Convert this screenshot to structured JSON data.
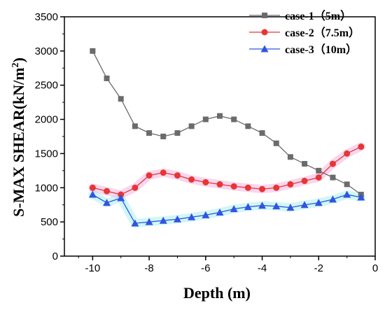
{
  "chart_data": {
    "type": "line",
    "title": "",
    "xlabel": "Depth (m)",
    "ylabel": "S-MAX SHEAR(kN/m",
    "ylabel_superscript": "2",
    "ylabel_close": ")",
    "xlim": [
      -11,
      0
    ],
    "ylim": [
      0,
      3500
    ],
    "xticks": [
      -10,
      -8,
      -6,
      -4,
      -2,
      0
    ],
    "yticks": [
      0,
      500,
      1000,
      1500,
      2000,
      2500,
      3000,
      3500
    ],
    "grid": false,
    "legend_position": "top-right",
    "series": [
      {
        "name": "case-1（5m）",
        "color": "#6b6b6b",
        "marker": "square",
        "x": [
          -10,
          -9.5,
          -9,
          -8.5,
          -8,
          -7.5,
          -7,
          -6.5,
          -6,
          -5.5,
          -5,
          -4.5,
          -4,
          -3.5,
          -3,
          -2.5,
          -2,
          -1.5,
          -1,
          -0.5
        ],
        "y": [
          3000,
          2600,
          2300,
          1900,
          1800,
          1750,
          1800,
          1900,
          2000,
          2050,
          2000,
          1900,
          1800,
          1650,
          1450,
          1350,
          1250,
          1150,
          1050,
          900
        ]
      },
      {
        "name": "case-2（7.5m）",
        "color": "#e83535",
        "marker": "circle",
        "x": [
          -10,
          -9.5,
          -9,
          -8.5,
          -8,
          -7.5,
          -7,
          -6.5,
          -6,
          -5.5,
          -5,
          -4.5,
          -4,
          -3.5,
          -3,
          -2.5,
          -2,
          -1.5,
          -1,
          -0.5
        ],
        "y": [
          1000,
          950,
          900,
          1000,
          1180,
          1220,
          1180,
          1120,
          1080,
          1050,
          1020,
          1000,
          980,
          1000,
          1050,
          1100,
          1150,
          1350,
          1500,
          1600
        ]
      },
      {
        "name": "case-3（10m）",
        "color": "#2f55e0",
        "marker": "triangle",
        "x": [
          -10,
          -9.5,
          -9,
          -8.5,
          -8,
          -7.5,
          -7,
          -6.5,
          -6,
          -5.5,
          -5,
          -4.5,
          -4,
          -3.5,
          -3,
          -2.5,
          -2,
          -1.5,
          -1,
          -0.5
        ],
        "y": [
          900,
          780,
          850,
          480,
          500,
          520,
          540,
          570,
          600,
          640,
          690,
          720,
          740,
          730,
          710,
          750,
          780,
          830,
          900,
          860
        ]
      }
    ]
  }
}
